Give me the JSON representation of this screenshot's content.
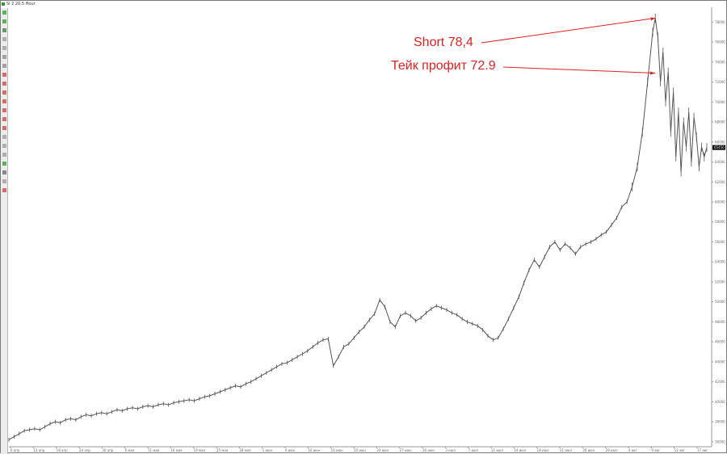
{
  "window": {
    "title": "Si 2 20.5 Hour"
  },
  "toolbar": {
    "items": [
      {
        "name": "cursor-icon",
        "color": "#2aa02a"
      },
      {
        "name": "crosshair-icon",
        "color": "#2aa02a"
      },
      {
        "name": "arrow-icon",
        "color": "#3a7d3a"
      },
      {
        "name": "ruler-icon",
        "color": "#999999"
      },
      {
        "name": "hand-icon",
        "color": "#999999"
      },
      {
        "name": "zoom-in-icon",
        "color": "#888888"
      },
      {
        "name": "zoom-out-icon",
        "color": "#888888"
      },
      {
        "name": "trend-line-icon",
        "color": "#d04040"
      },
      {
        "name": "horizontal-line-icon",
        "color": "#d04040"
      },
      {
        "name": "vertical-line-icon",
        "color": "#d04040"
      },
      {
        "name": "channel-icon",
        "color": "#d04040"
      },
      {
        "name": "fibonacci-icon",
        "color": "#d04040"
      },
      {
        "name": "text-icon",
        "color": "#d04040"
      },
      {
        "name": "rectangle-icon",
        "color": "#d04040"
      },
      {
        "name": "ellipse-icon",
        "color": "#999999"
      },
      {
        "name": "pen-icon",
        "color": "#999999"
      },
      {
        "name": "eraser-icon",
        "color": "#999999"
      },
      {
        "name": "indicator-icon",
        "color": "#2aa02a"
      },
      {
        "name": "settings-icon",
        "color": "#666666"
      },
      {
        "name": "layers-icon",
        "color": "#999999"
      },
      {
        "name": "delete-icon",
        "color": "#d04040"
      }
    ]
  },
  "chart_data": {
    "type": "line",
    "title": "",
    "xlabel": "",
    "ylabel": "",
    "color": "#555555",
    "grid": false,
    "x_tick_labels": [
      "6 апр",
      "12 апр",
      "18 апр",
      "24 апр",
      "30 апр",
      "6 мая",
      "11 мая",
      "16 мая",
      "19 мая",
      "25 мая",
      "28 мая",
      "1 июн",
      "6 июн",
      "10 июн",
      "16 июн",
      "20 июн",
      "24 июн",
      "27 июн",
      "30 июн",
      "3 июл",
      "7 июл",
      "11 июл",
      "14 июл",
      "18 июл",
      "21 июл",
      "26 июл",
      "29 июл",
      "4 авг",
      "9 авг",
      "12 авг",
      "17 авг"
    ],
    "y_tick_labels": [
      "78000",
      "76000",
      "74000",
      "72000",
      "70000",
      "68000",
      "66000",
      "64000",
      "62000",
      "60000",
      "58000",
      "56000",
      "54000",
      "52000",
      "50000",
      "48000",
      "46000",
      "44000",
      "42000",
      "40000",
      "38000",
      "36000"
    ],
    "ylim": [
      35500,
      79000
    ],
    "current_price_label": "65450",
    "series": [
      {
        "points": [
          [
            0,
            36200
          ],
          [
            2,
            36500
          ],
          [
            4,
            36800
          ],
          [
            6,
            37100
          ],
          [
            8,
            37200
          ],
          [
            10,
            37300
          ],
          [
            12,
            37200
          ],
          [
            14,
            37500
          ],
          [
            16,
            37800
          ],
          [
            18,
            38000
          ],
          [
            20,
            37900
          ],
          [
            22,
            38200
          ],
          [
            24,
            38300
          ],
          [
            26,
            38200
          ],
          [
            28,
            38500
          ],
          [
            30,
            38700
          ],
          [
            32,
            38600
          ],
          [
            34,
            38800
          ],
          [
            36,
            38900
          ],
          [
            38,
            38800
          ],
          [
            40,
            39000
          ],
          [
            42,
            39200
          ],
          [
            44,
            39100
          ],
          [
            46,
            39300
          ],
          [
            48,
            39400
          ],
          [
            50,
            39300
          ],
          [
            52,
            39500
          ],
          [
            54,
            39600
          ],
          [
            56,
            39500
          ],
          [
            58,
            39700
          ],
          [
            60,
            39800
          ],
          [
            62,
            39700
          ],
          [
            64,
            39900
          ],
          [
            66,
            40000
          ],
          [
            68,
            40100
          ],
          [
            70,
            40200
          ],
          [
            72,
            40100
          ],
          [
            74,
            40300
          ],
          [
            76,
            40500
          ],
          [
            78,
            40600
          ],
          [
            80,
            40800
          ],
          [
            82,
            41000
          ],
          [
            84,
            41200
          ],
          [
            86,
            41400
          ],
          [
            88,
            41600
          ],
          [
            90,
            41500
          ],
          [
            92,
            41800
          ],
          [
            94,
            42000
          ],
          [
            96,
            42300
          ],
          [
            98,
            42600
          ],
          [
            100,
            42900
          ],
          [
            102,
            43200
          ],
          [
            104,
            43500
          ],
          [
            106,
            43800
          ],
          [
            108,
            43900
          ],
          [
            110,
            44200
          ],
          [
            112,
            44500
          ],
          [
            114,
            44800
          ],
          [
            116,
            45100
          ],
          [
            118,
            45500
          ],
          [
            120,
            45900
          ],
          [
            122,
            46200
          ],
          [
            124,
            46300
          ],
          [
            126,
            43600
          ],
          [
            128,
            44500
          ],
          [
            130,
            45500
          ],
          [
            132,
            45800
          ],
          [
            134,
            46400
          ],
          [
            136,
            47000
          ],
          [
            138,
            47500
          ],
          [
            140,
            48200
          ],
          [
            142,
            48800
          ],
          [
            144,
            50200
          ],
          [
            146,
            49500
          ],
          [
            148,
            48000
          ],
          [
            150,
            47500
          ],
          [
            152,
            48600
          ],
          [
            154,
            48900
          ],
          [
            156,
            48600
          ],
          [
            158,
            48100
          ],
          [
            160,
            48400
          ],
          [
            162,
            48900
          ],
          [
            164,
            49300
          ],
          [
            166,
            49600
          ],
          [
            168,
            49400
          ],
          [
            170,
            49200
          ],
          [
            172,
            48900
          ],
          [
            174,
            48700
          ],
          [
            176,
            48300
          ],
          [
            178,
            48000
          ],
          [
            180,
            47800
          ],
          [
            182,
            47600
          ],
          [
            184,
            47200
          ],
          [
            186,
            46600
          ],
          [
            188,
            46200
          ],
          [
            190,
            46400
          ],
          [
            192,
            47300
          ],
          [
            194,
            48300
          ],
          [
            196,
            49400
          ],
          [
            198,
            50500
          ],
          [
            200,
            51900
          ],
          [
            202,
            53200
          ],
          [
            204,
            54200
          ],
          [
            206,
            53500
          ],
          [
            208,
            54500
          ],
          [
            210,
            55500
          ],
          [
            212,
            56000
          ],
          [
            214,
            55200
          ],
          [
            216,
            55800
          ],
          [
            218,
            55400
          ],
          [
            220,
            54800
          ],
          [
            222,
            55500
          ],
          [
            224,
            55800
          ],
          [
            226,
            56000
          ],
          [
            228,
            56300
          ],
          [
            230,
            56700
          ],
          [
            232,
            57000
          ],
          [
            234,
            57700
          ],
          [
            236,
            58400
          ],
          [
            238,
            59500
          ],
          [
            240,
            60000
          ],
          [
            242,
            61500
          ],
          [
            244,
            63500
          ],
          [
            246,
            67000
          ],
          [
            248,
            72000
          ],
          [
            250,
            77000
          ],
          [
            251,
            78400
          ],
          [
            252,
            76500
          ],
          [
            253,
            72000
          ],
          [
            254,
            75000
          ],
          [
            255,
            70000
          ],
          [
            256,
            73000
          ],
          [
            257,
            67000
          ],
          [
            258,
            71000
          ],
          [
            259,
            64500
          ],
          [
            260,
            69000
          ],
          [
            261,
            63000
          ],
          [
            262,
            68000
          ],
          [
            263,
            65500
          ],
          [
            264,
            69000
          ],
          [
            265,
            64000
          ],
          [
            266,
            68500
          ],
          [
            267,
            66500
          ],
          [
            268,
            63500
          ],
          [
            269,
            65500
          ],
          [
            270,
            64500
          ],
          [
            271,
            65450
          ]
        ]
      }
    ],
    "annotations": [
      {
        "text": "Short 78,4",
        "value": 78400,
        "color": "#e32020"
      },
      {
        "text": "Тейк профит 72.9",
        "value": 72900,
        "color": "#e32020"
      }
    ]
  }
}
